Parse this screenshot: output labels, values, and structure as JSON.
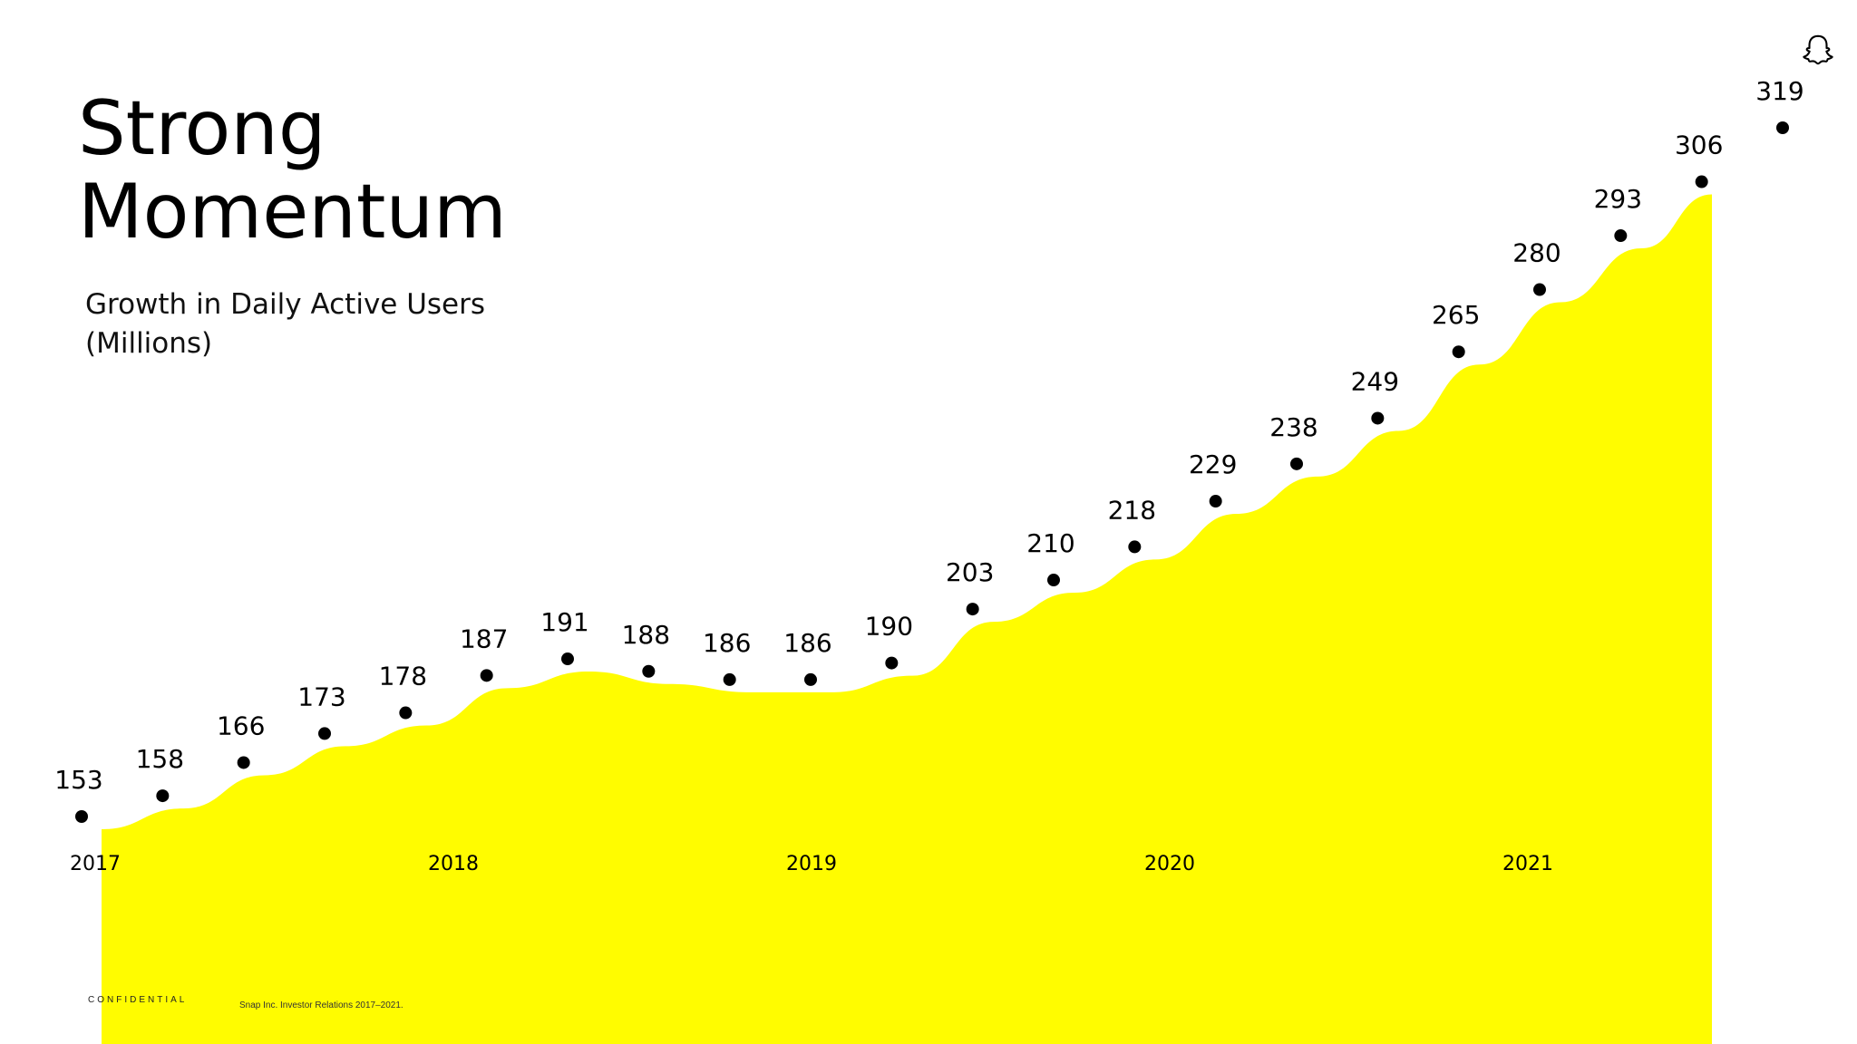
{
  "slide": {
    "title_line1": "Strong",
    "title_line2": "Momentum",
    "subtitle_line1": "Growth in Daily Active Users",
    "subtitle_line2": "(Millions)",
    "confidential": "CONFIDENTIAL",
    "source": "Snap Inc. Investor Relations 2017–2021.",
    "logo_icon": "snapchat-ghost-icon"
  },
  "colors": {
    "area_fill": "#FFFC00",
    "marker": "#000000",
    "text": "#000000"
  },
  "chart_data": {
    "type": "area",
    "title": "Strong Momentum",
    "subtitle": "Growth in Daily Active Users (Millions)",
    "x_tick_labels": [
      "2017",
      "2018",
      "2019",
      "2020",
      "2021"
    ],
    "series": [
      {
        "values": [
          153,
          158,
          166,
          173,
          178,
          187,
          191,
          188,
          186,
          186,
          190,
          203,
          210,
          218,
          229,
          238,
          249,
          265,
          280,
          293,
          306,
          319
        ],
        "data_labels": [
          "153",
          "158",
          "166",
          "173",
          "178",
          "187",
          "191",
          "188",
          "186",
          "186",
          "190",
          "203",
          "210",
          "218",
          "229",
          "238",
          "249",
          "265",
          "280",
          "293",
          "306",
          "319"
        ]
      }
    ],
    "grid": false,
    "legend": "none"
  }
}
